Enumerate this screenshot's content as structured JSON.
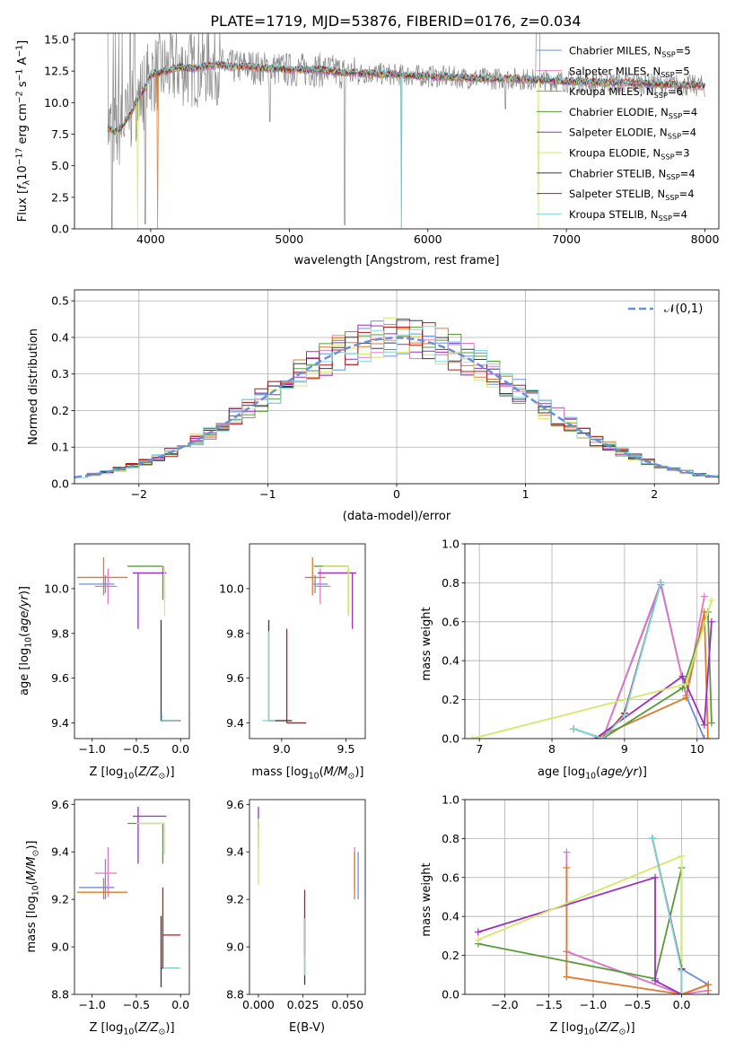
{
  "figure": {
    "title": "PLATE=1719, MJD=53876, FIBERID=0176, z=0.034"
  },
  "colors": {
    "Chabrier MILES": "#6b8fd6",
    "Salpeter MILES": "#e079c4",
    "Kroupa MILES": "#e07a2c",
    "Chabrier ELODIE": "#5a9a3c",
    "Salpeter ELODIE": "#9a2fbf",
    "Kroupa ELODIE": "#d4e86a",
    "Chabrier STELIB": "#3a3a3a",
    "Salpeter STELIB": "#b01c1c",
    "Kroupa STELIB": "#7fd8dc"
  },
  "chart_data": [
    {
      "id": "spectrum",
      "type": "line",
      "title": "PLATE=1719, MJD=53876, FIBERID=0176, z=0.034",
      "xlabel": "wavelength [Angstrom, rest frame]",
      "ylabel": "Flux [f_λ10^-17 erg cm^-2 s^-1 A^-1]",
      "xlim": [
        3450,
        8100
      ],
      "ylim": [
        0,
        15.5
      ],
      "xticks": [
        4000,
        5000,
        6000,
        7000,
        8000
      ],
      "yticks": [
        0.0,
        2.5,
        5.0,
        7.5,
        10.0,
        12.5,
        15.0
      ],
      "legend": {
        "placement": "top-right",
        "entries": [
          {
            "label": "Chabrier MILES, N_SSP=5",
            "series": "Chabrier MILES"
          },
          {
            "label": "Salpeter MILES, N_SSP=5",
            "series": "Salpeter MILES"
          },
          {
            "label": "Kroupa MILES, N_SSP=6",
            "series": "Kroupa MILES"
          },
          {
            "label": "Chabrier ELODIE, N_SSP=4",
            "series": "Chabrier ELODIE"
          },
          {
            "label": "Salpeter ELODIE, N_SSP=4",
            "series": "Salpeter ELODIE"
          },
          {
            "label": "Kroupa ELODIE, N_SSP=3",
            "series": "Kroupa ELODIE"
          },
          {
            "label": "Chabrier STELIB, N_SSP=4",
            "series": "Chabrier STELIB"
          },
          {
            "label": "Salpeter STELIB, N_SSP=4",
            "series": "Salpeter STELIB"
          },
          {
            "label": "Kroupa STELIB, N_SSP=4",
            "series": "Kroupa STELIB"
          }
        ]
      },
      "observed_color": "#8a8a8a",
      "model_x": [
        3700,
        3750,
        3800,
        3850,
        3900,
        3950,
        4000,
        4100,
        4200,
        4300,
        4400,
        4500,
        4600,
        4700,
        4800,
        4900,
        5000,
        5200,
        5400,
        5600,
        5800,
        6000,
        6200,
        6400,
        6600,
        6800,
        7000,
        7200,
        7400,
        7600,
        7800,
        8000
      ],
      "model_y": [
        8.0,
        7.6,
        8.2,
        9.0,
        10.2,
        11.0,
        12.2,
        12.5,
        12.8,
        12.7,
        12.9,
        13.0,
        12.8,
        12.9,
        12.7,
        12.7,
        12.6,
        12.6,
        12.4,
        12.3,
        12.2,
        12.1,
        12.0,
        11.9,
        11.9,
        11.8,
        11.7,
        11.6,
        11.6,
        11.5,
        11.4,
        11.3
      ],
      "grid": false
    },
    {
      "id": "residuals",
      "type": "histogram",
      "xlabel": "(data-model)/error",
      "ylabel": "Normed distribution",
      "xlim": [
        -2.5,
        2.5
      ],
      "ylim": [
        0,
        0.53
      ],
      "xticks": [
        -2,
        -1,
        0,
        1,
        2
      ],
      "yticks": [
        0.0,
        0.1,
        0.2,
        0.3,
        0.4,
        0.5
      ],
      "bin_width": 0.1,
      "reference_curve": {
        "name": "𝒩(0,1)",
        "color": "#6b8fd6",
        "style": "dashed"
      },
      "legend": {
        "placement": "top-right"
      },
      "grid": true
    },
    {
      "id": "age-vs-Z",
      "type": "scatter",
      "xlabel": "Z [log10(Z/Z⊙)]",
      "ylabel": "age  [log10(age/yr)]",
      "xlim": [
        -1.2,
        0.1
      ],
      "ylim": [
        9.33,
        10.2
      ],
      "xticks": [
        -1.0,
        -0.5,
        0.0
      ],
      "yticks": [
        9.4,
        9.6,
        9.8,
        10.0
      ],
      "points": [
        {
          "series": "Chabrier MILES",
          "x": -0.85,
          "y": 10.02,
          "xerr": [
            0.3,
            0.1
          ],
          "yerr": [
            0.04,
            0.04
          ]
        },
        {
          "series": "Salpeter MILES",
          "x": -0.82,
          "y": 10.01,
          "xerr": [
            0.15,
            0.1
          ],
          "yerr": [
            0.08,
            0.08
          ]
        },
        {
          "series": "Kroupa MILES",
          "x": -0.87,
          "y": 10.05,
          "xerr": [
            0.3,
            0.27
          ],
          "yerr": [
            0.08,
            0.09
          ]
        },
        {
          "series": "Chabrier ELODIE",
          "x": -0.2,
          "y": 10.1,
          "xerr": [
            0.4,
            0.0
          ],
          "yerr": [
            0.15,
            0.0
          ]
        },
        {
          "series": "Salpeter ELODIE",
          "x": -0.48,
          "y": 10.07,
          "xerr": [
            0.06,
            0.32
          ],
          "yerr": [
            0.25,
            0.0
          ]
        },
        {
          "series": "Kroupa ELODIE",
          "x": -0.18,
          "y": 10.1,
          "xerr": [
            0.0,
            0.0
          ],
          "yerr": [
            0.22,
            0.0
          ]
        },
        {
          "series": "Chabrier STELIB",
          "x": -0.22,
          "y": 9.41,
          "xerr": [
            0.0,
            0.2
          ],
          "yerr": [
            0.0,
            0.45
          ]
        },
        {
          "series": "Salpeter STELIB",
          "x": -0.2,
          "y": 9.41,
          "xerr": [
            0.0,
            0.2
          ],
          "yerr": [
            0.0,
            0.0
          ]
        },
        {
          "series": "Kroupa STELIB",
          "x": -0.21,
          "y": 9.41,
          "xerr": [
            0.0,
            0.2
          ],
          "yerr": [
            0.0,
            0.03
          ]
        }
      ]
    },
    {
      "id": "age-vs-mass",
      "type": "scatter",
      "xlabel": "mass [log10(M/M⊙)]",
      "ylabel": "",
      "xlim": [
        8.75,
        9.65
      ],
      "ylim": [
        9.33,
        10.2
      ],
      "xticks": [
        9.0,
        9.5
      ],
      "yticks": [
        9.4,
        9.6,
        9.8,
        10.0
      ],
      "points": [
        {
          "series": "Chabrier MILES",
          "x": 9.26,
          "y": 10.02,
          "xerr": [
            0.02,
            0.1
          ],
          "yerr": [
            0.04,
            0.04
          ]
        },
        {
          "series": "Salpeter MILES",
          "x": 9.3,
          "y": 10.01,
          "xerr": [
            0.04,
            0.08
          ],
          "yerr": [
            0.08,
            0.08
          ]
        },
        {
          "series": "Kroupa MILES",
          "x": 9.24,
          "y": 10.05,
          "xerr": [
            0.06,
            0.1
          ],
          "yerr": [
            0.08,
            0.09
          ]
        },
        {
          "series": "Chabrier ELODIE",
          "x": 9.52,
          "y": 10.1,
          "xerr": [
            0.27,
            0.0
          ],
          "yerr": [
            0.22,
            0.0
          ]
        },
        {
          "series": "Salpeter ELODIE",
          "x": 9.55,
          "y": 10.07,
          "xerr": [
            0.27,
            0.03
          ],
          "yerr": [
            0.25,
            0.0
          ]
        },
        {
          "series": "Kroupa ELODIE",
          "x": 9.52,
          "y": 10.1,
          "xerr": [
            0.2,
            0.0
          ],
          "yerr": [
            0.22,
            0.0
          ]
        },
        {
          "series": "Chabrier STELIB",
          "x": 8.9,
          "y": 9.41,
          "xerr": [
            0.0,
            0.18
          ],
          "yerr": [
            0.0,
            0.45
          ]
        },
        {
          "series": "Salpeter STELIB",
          "x": 9.04,
          "y": 9.4,
          "xerr": [
            0.0,
            0.15
          ],
          "yerr": [
            0.0,
            0.42
          ]
        },
        {
          "series": "Kroupa STELIB",
          "x": 8.9,
          "y": 9.41,
          "xerr": [
            0.05,
            0.05
          ],
          "yerr": [
            0.0,
            0.4
          ]
        }
      ]
    },
    {
      "id": "massweight-vs-age",
      "type": "line",
      "xlabel": "age  [log10(age/yr)]",
      "ylabel": "mass weight",
      "xlim": [
        6.8,
        10.3
      ],
      "ylim": [
        0,
        1.0
      ],
      "xticks": [
        7,
        8,
        9,
        10
      ],
      "yticks": [
        0.0,
        0.2,
        0.4,
        0.6,
        0.8,
        1.0
      ],
      "grid": true,
      "series": [
        {
          "name": "Chabrier MILES",
          "x": [
            8.3,
            8.7,
            9.5,
            9.85,
            10.1
          ],
          "y": [
            0.05,
            0.0,
            0.79,
            0.22,
            0.0
          ]
        },
        {
          "name": "Salpeter MILES",
          "x": [
            8.7,
            9.5,
            9.85,
            10.1
          ],
          "y": [
            0.0,
            0.8,
            0.22,
            0.73
          ]
        },
        {
          "name": "Kroupa MILES",
          "x": [
            8.6,
            9.85,
            10.1,
            10.15
          ],
          "y": [
            0.0,
            0.21,
            0.65,
            0.0
          ]
        },
        {
          "name": "Chabrier ELODIE",
          "x": [
            8.7,
            9.8,
            10.15,
            10.2
          ],
          "y": [
            0.0,
            0.26,
            0.65,
            0.08
          ]
        },
        {
          "name": "Salpeter ELODIE",
          "x": [
            8.6,
            9.8,
            10.1,
            10.2
          ],
          "y": [
            0.0,
            0.32,
            0.07,
            0.6
          ]
        },
        {
          "name": "Kroupa ELODIE",
          "x": [
            6.9,
            9.85,
            10.2
          ],
          "y": [
            0.0,
            0.28,
            0.71
          ]
        },
        {
          "name": "Chabrier STELIB",
          "x": [
            8.3,
            8.7,
            9.0,
            9.5
          ],
          "y": [
            0.05,
            0.0,
            0.13,
            0.8
          ]
        },
        {
          "name": "Salpeter STELIB",
          "x": [
            8.7,
            9.0,
            9.5
          ],
          "y": [
            0.0,
            0.13,
            0.8
          ]
        },
        {
          "name": "Kroupa STELIB",
          "x": [
            8.3,
            8.7,
            9.0,
            9.5
          ],
          "y": [
            0.05,
            0.0,
            0.12,
            0.8
          ]
        }
      ]
    },
    {
      "id": "mass-vs-Z",
      "type": "scatter",
      "xlabel": "Z [log10(Z/Z⊙)]",
      "ylabel": "mass [log10(M/M⊙)]",
      "xlim": [
        -1.2,
        0.1
      ],
      "ylim": [
        8.8,
        9.62
      ],
      "xticks": [
        -1.0,
        -0.5,
        0.0
      ],
      "yticks": [
        8.8,
        9.0,
        9.2,
        9.4,
        9.6
      ],
      "points": [
        {
          "series": "Chabrier MILES",
          "x": -0.85,
          "y": 9.25,
          "xerr": [
            0.3,
            0.1
          ],
          "yerr": [
            0.05,
            0.12
          ]
        },
        {
          "series": "Salpeter MILES",
          "x": -0.82,
          "y": 9.31,
          "xerr": [
            0.15,
            0.1
          ],
          "yerr": [
            0.1,
            0.11
          ]
        },
        {
          "series": "Kroupa MILES",
          "x": -0.87,
          "y": 9.23,
          "xerr": [
            0.3,
            0.27
          ],
          "yerr": [
            0.03,
            0.06
          ]
        },
        {
          "series": "Chabrier ELODIE",
          "x": -0.2,
          "y": 9.52,
          "xerr": [
            0.4,
            0.0
          ],
          "yerr": [
            0.17,
            0.0
          ]
        },
        {
          "series": "Salpeter ELODIE",
          "x": -0.48,
          "y": 9.55,
          "xerr": [
            0.06,
            0.32
          ],
          "yerr": [
            0.2,
            0.04
          ]
        },
        {
          "series": "Kroupa ELODIE",
          "x": -0.18,
          "y": 9.52,
          "xerr": [
            0.32,
            0.0
          ],
          "yerr": [
            0.13,
            0.0
          ]
        },
        {
          "series": "Chabrier STELIB",
          "x": -0.22,
          "y": 8.91,
          "xerr": [
            0.0,
            0.2
          ],
          "yerr": [
            0.08,
            0.22
          ]
        },
        {
          "series": "Salpeter STELIB",
          "x": -0.2,
          "y": 9.05,
          "xerr": [
            0.0,
            0.2
          ],
          "yerr": [
            0.14,
            0.2
          ]
        },
        {
          "series": "Kroupa STELIB",
          "x": -0.2,
          "y": 8.91,
          "xerr": [
            0.0,
            0.2
          ],
          "yerr": [
            0.0,
            0.0
          ]
        }
      ]
    },
    {
      "id": "mass-vs-EBV",
      "type": "scatter",
      "xlabel": "E(B-V)",
      "ylabel": "",
      "xlim": [
        -0.005,
        0.06
      ],
      "ylim": [
        8.8,
        9.62
      ],
      "xticks": [
        0.0,
        0.025,
        0.05
      ],
      "yticks": [
        8.8,
        9.0,
        9.2,
        9.4,
        9.6
      ],
      "points": [
        {
          "series": "Chabrier MILES",
          "x": 0.056,
          "y": 9.3,
          "xerr": [
            0.0,
            0.0
          ],
          "yerr": [
            0.1,
            0.1
          ]
        },
        {
          "series": "Salpeter MILES",
          "x": 0.054,
          "y": 9.33,
          "xerr": [
            0.0,
            0.0
          ],
          "yerr": [
            0.1,
            0.09
          ]
        },
        {
          "series": "Kroupa MILES",
          "x": 0.054,
          "y": 9.3,
          "xerr": [
            0.0,
            0.0
          ],
          "yerr": [
            0.1,
            0.1
          ]
        },
        {
          "series": "Chabrier ELODIE",
          "x": 0.0,
          "y": 9.52,
          "xerr": [
            0.0,
            0.0
          ],
          "yerr": [
            0.1,
            0.0
          ]
        },
        {
          "series": "Salpeter ELODIE",
          "x": 0.0,
          "y": 9.55,
          "xerr": [
            0.0,
            0.0
          ],
          "yerr": [
            0.05,
            0.04
          ]
        },
        {
          "series": "Kroupa ELODIE",
          "x": 0.0,
          "y": 9.4,
          "xerr": [
            0.0,
            0.0
          ],
          "yerr": [
            0.14,
            0.14
          ]
        },
        {
          "series": "Chabrier STELIB",
          "x": 0.026,
          "y": 8.98,
          "xerr": [
            0.0,
            0.0
          ],
          "yerr": [
            0.14,
            0.14
          ]
        },
        {
          "series": "Salpeter STELIB",
          "x": 0.026,
          "y": 9.1,
          "xerr": [
            0.0,
            0.0
          ],
          "yerr": [
            0.14,
            0.14
          ]
        },
        {
          "series": "Kroupa STELIB",
          "x": 0.026,
          "y": 9.0,
          "xerr": [
            0.0,
            0.0
          ],
          "yerr": [
            0.12,
            0.12
          ]
        }
      ]
    },
    {
      "id": "massweight-vs-Z",
      "type": "line",
      "xlabel": "Z [log10(Z/Z⊙)]",
      "ylabel": "mass weight",
      "xlim": [
        -2.45,
        0.42
      ],
      "ylim": [
        0,
        1.0
      ],
      "xticks": [
        -2.0,
        -1.5,
        -1.0,
        -0.5,
        0.0
      ],
      "yticks": [
        0.0,
        0.2,
        0.4,
        0.6,
        0.8,
        1.0
      ],
      "grid": true,
      "series": [
        {
          "name": "Chabrier MILES",
          "x": [
            -1.3,
            0.0,
            0.3,
            0.0,
            -0.33
          ],
          "y": [
            0.22,
            0.0,
            0.05,
            0.13,
            0.8
          ]
        },
        {
          "name": "Salpeter MILES",
          "x": [
            -1.3,
            -1.3,
            0.0,
            0.3
          ],
          "y": [
            0.73,
            0.22,
            0.0,
            0.02
          ]
        },
        {
          "name": "Kroupa MILES",
          "x": [
            -1.3,
            -1.3,
            0.0,
            0.3,
            0.3
          ],
          "y": [
            0.65,
            0.09,
            0.0,
            0.05,
            0.0
          ]
        },
        {
          "name": "Chabrier ELODIE",
          "x": [
            -2.3,
            -0.3,
            0.0,
            0.0
          ],
          "y": [
            0.26,
            0.08,
            0.65,
            0.0
          ]
        },
        {
          "name": "Salpeter ELODIE",
          "x": [
            -2.3,
            -0.3,
            -0.3,
            0.0
          ],
          "y": [
            0.32,
            0.6,
            0.07,
            0.0
          ]
        },
        {
          "name": "Kroupa ELODIE",
          "x": [
            -2.3,
            0.0,
            0.0
          ],
          "y": [
            0.28,
            0.71,
            0.0
          ]
        },
        {
          "name": "Chabrier STELIB",
          "x": [
            -0.33,
            0.0,
            0.0
          ],
          "y": [
            0.8,
            0.13,
            0.0
          ]
        },
        {
          "name": "Salpeter STELIB",
          "x": [
            -0.33,
            0.0,
            0.0
          ],
          "y": [
            0.8,
            0.13,
            0.0
          ]
        },
        {
          "name": "Kroupa STELIB",
          "x": [
            -0.33,
            0.0,
            0.0
          ],
          "y": [
            0.8,
            0.12,
            0.0
          ]
        }
      ]
    }
  ]
}
